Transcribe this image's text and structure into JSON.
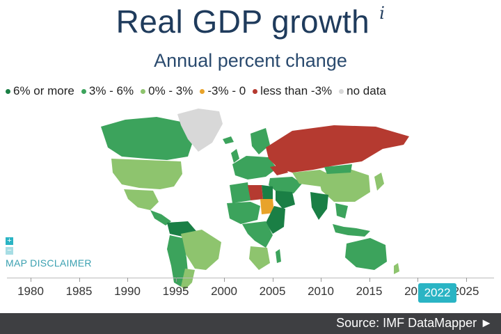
{
  "title": "Real GDP growth",
  "info_symbol": "i",
  "subtitle": "Annual percent change",
  "legend": [
    {
      "label": "6% or more",
      "color": "#1a7f45"
    },
    {
      "label": "3% - 6%",
      "color": "#3ca35c"
    },
    {
      "label": "0% - 3%",
      "color": "#8ec46e"
    },
    {
      "label": "-3% - 0",
      "color": "#e8a32a"
    },
    {
      "label": "less than -3%",
      "color": "#b53a30"
    },
    {
      "label": "no data",
      "color": "#d8d8d8"
    }
  ],
  "zoom": {
    "in_symbol": "+",
    "out_symbol": "−"
  },
  "disclaimer": "MAP DISCLAIMER",
  "timeline": {
    "years": [
      "1980",
      "1985",
      "1990",
      "1995",
      "2000",
      "2005",
      "2010",
      "2015",
      "2020",
      "2025"
    ],
    "selected": "2022"
  },
  "source": "Source: IMF DataMapper ►",
  "regions": [
    {
      "name": "Greenland",
      "bin": "no data"
    },
    {
      "name": "Russia",
      "bin": "less than -3%"
    },
    {
      "name": "Ukraine",
      "bin": "less than -3%"
    },
    {
      "name": "Libya",
      "bin": "less than -3%"
    },
    {
      "name": "Sudan",
      "bin": "-3% - 0"
    },
    {
      "name": "Canada",
      "bin": "3% - 6%"
    },
    {
      "name": "United States",
      "bin": "0% - 3%"
    },
    {
      "name": "Mexico",
      "bin": "0% - 3%"
    },
    {
      "name": "Brazil",
      "bin": "0% - 3%"
    },
    {
      "name": "Australia",
      "bin": "3% - 6%"
    },
    {
      "name": "India",
      "bin": "6% or more"
    },
    {
      "name": "China",
      "bin": "0% - 3%"
    },
    {
      "name": "Saudi Arabia",
      "bin": "6% or more"
    }
  ]
}
